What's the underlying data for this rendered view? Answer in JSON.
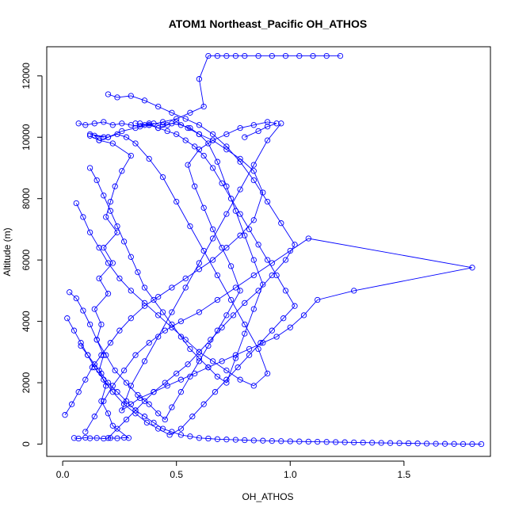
{
  "chart_data": {
    "type": "line",
    "title": "ATOM1 Northeast_Pacific OH_ATHOS",
    "xlabel": "OH_ATHOS",
    "ylabel": "Altitude (m)",
    "xlim": [
      -0.07,
      1.88
    ],
    "ylim": [
      -400,
      12950
    ],
    "xticks": [
      0.0,
      0.5,
      1.0,
      1.5
    ],
    "xtick_labels": [
      "0.0",
      "0.5",
      "1.0",
      "1.5"
    ],
    "yticks": [
      0,
      2000,
      4000,
      6000,
      8000,
      10000,
      12000
    ],
    "ytick_labels": [
      "0",
      "2000",
      "4000",
      "6000",
      "8000",
      "10000",
      "12000"
    ],
    "grid": false,
    "series_color": "#0000ff",
    "marker": "open-circle",
    "series": [
      {
        "x": [
          0.05,
          0.07,
          0.1,
          0.12,
          0.15,
          0.18,
          0.21,
          0.24,
          0.27,
          0.29,
          0.22,
          0.2,
          0.17,
          0.19,
          0.16,
          0.18,
          0.15,
          0.17,
          0.14,
          0.2,
          0.16,
          0.22,
          0.18,
          0.24,
          0.19,
          0.21,
          0.23,
          0.26,
          0.3,
          0.22,
          0.16,
          0.14,
          0.18,
          0.12,
          0.2,
          0.26,
          0.32,
          0.38,
          0.44,
          0.5,
          0.56,
          0.62,
          0.6,
          0.64,
          0.68,
          0.72,
          0.76,
          0.8,
          0.86,
          0.92,
          0.98,
          1.04,
          1.1,
          1.16,
          1.22
        ],
        "y": [
          200,
          180,
          210,
          190,
          200,
          180,
          200,
          190,
          210,
          200,
          600,
          1000,
          1400,
          1900,
          2400,
          2900,
          3400,
          3900,
          4400,
          4900,
          5400,
          5900,
          6400,
          6900,
          7400,
          7900,
          8400,
          8900,
          9400,
          9800,
          9900,
          10050,
          10000,
          10100,
          10000,
          10200,
          10300,
          10400,
          10500,
          10600,
          10800,
          11000,
          11900,
          12650,
          12650,
          12650,
          12650,
          12650,
          12650,
          12650,
          12650,
          12650,
          12650,
          12650,
          12650
        ]
      },
      {
        "x": [
          0.03,
          0.06,
          0.09,
          0.12,
          0.15,
          0.19,
          0.23,
          0.28,
          0.33,
          0.38,
          0.42,
          0.45,
          0.48,
          0.52,
          0.56,
          0.6,
          0.64,
          0.68,
          0.72,
          0.78,
          0.74,
          0.7,
          0.66,
          0.62,
          0.58,
          0.55,
          0.6,
          0.66,
          0.72,
          0.78,
          0.84,
          0.9,
          0.94,
          0.9,
          0.86,
          0.8
        ],
        "y": [
          4950,
          4750,
          4350,
          3900,
          3400,
          2900,
          2400,
          2000,
          1600,
          1300,
          1000,
          800,
          1200,
          1700,
          2200,
          2700,
          3200,
          3700,
          4200,
          5000,
          5800,
          6400,
          7000,
          7700,
          8400,
          9100,
          9600,
          9900,
          10100,
          10300,
          10400,
          10500,
          10450,
          10350,
          10200,
          10000
        ]
      },
      {
        "x": [
          0.01,
          0.04,
          0.07,
          0.1,
          0.13,
          0.17,
          0.21,
          0.25,
          0.3,
          0.36,
          0.42,
          0.48,
          0.54,
          0.6,
          0.66,
          0.72,
          0.78,
          0.84,
          0.88,
          0.84,
          0.78,
          0.72,
          0.66,
          0.6,
          0.55,
          0.5,
          0.46,
          0.42,
          0.38,
          0.34,
          0.3,
          0.26,
          0.22,
          0.18,
          0.14,
          0.1,
          0.07
        ],
        "y": [
          950,
          1300,
          1700,
          2100,
          2500,
          2900,
          3300,
          3700,
          4100,
          4500,
          4800,
          5100,
          5400,
          5700,
          6000,
          6400,
          6800,
          7300,
          8200,
          8900,
          9300,
          9600,
          9900,
          10100,
          10300,
          10500,
          10400,
          10300,
          10450,
          10350,
          10400,
          10450,
          10400,
          10500,
          10450,
          10400,
          10450
        ]
      },
      {
        "x": [
          0.2,
          0.24,
          0.28,
          0.32,
          0.36,
          0.4,
          0.45,
          0.5,
          0.55,
          0.6,
          0.65,
          0.7,
          0.75,
          0.8,
          0.86,
          0.92,
          0.98,
          1.02,
          0.96,
          0.9,
          0.84,
          0.78,
          0.72,
          0.66,
          0.6,
          0.54,
          0.48,
          0.42,
          0.36,
          0.3,
          0.24,
          0.2
        ],
        "y": [
          200,
          500,
          800,
          1100,
          1400,
          1700,
          2000,
          2300,
          2600,
          3000,
          3400,
          3800,
          4200,
          4600,
          5000,
          5500,
          6000,
          6500,
          7200,
          7900,
          8600,
          9200,
          9700,
          10100,
          10400,
          10600,
          10800,
          11000,
          11200,
          11350,
          11300,
          11400
        ]
      },
      {
        "x": [
          0.1,
          0.14,
          0.18,
          0.22,
          0.27,
          0.32,
          0.38,
          0.45,
          0.52,
          0.6,
          0.68,
          0.76,
          0.84,
          0.92,
          1.0,
          1.08,
          1.8,
          1.28,
          1.12,
          1.06,
          1.0,
          0.94,
          0.88,
          0.82,
          0.76,
          0.7,
          0.64,
          0.58,
          0.52,
          0.46,
          0.4,
          0.34,
          0.3,
          0.26,
          0.3,
          0.36,
          0.42,
          0.48,
          0.54,
          0.6,
          0.66,
          0.72,
          0.78,
          0.84,
          0.9,
          0.96
        ],
        "y": [
          400,
          900,
          1400,
          1900,
          2400,
          2900,
          3300,
          3700,
          4000,
          4300,
          4700,
          5100,
          5500,
          5900,
          6300,
          6700,
          5750,
          5000,
          4700,
          4200,
          3800,
          3500,
          3300,
          3100,
          2900,
          2700,
          2500,
          2300,
          2100,
          1900,
          1700,
          1500,
          1300,
          1100,
          1900,
          2700,
          3500,
          4300,
          5100,
          5900,
          6700,
          7500,
          8300,
          9100,
          9900,
          10450
        ]
      },
      {
        "x": [
          0.08,
          0.11,
          0.14,
          0.17,
          0.2,
          0.24,
          0.28,
          0.32,
          0.36,
          0.4,
          0.44,
          0.48,
          0.52,
          0.56,
          0.6,
          0.64,
          0.68,
          0.72,
          0.76,
          0.8,
          0.84,
          0.88,
          0.92,
          0.96,
          1.0,
          1.04,
          1.08,
          1.12,
          1.16,
          1.2,
          1.24,
          1.28,
          1.32,
          1.36,
          1.4,
          1.44,
          1.48,
          1.52,
          1.56,
          1.6,
          1.64,
          1.68,
          1.72,
          1.76,
          1.8,
          1.84
        ],
        "y": [
          3200,
          2900,
          2600,
          2300,
          2000,
          1700,
          1400,
          1100,
          900,
          700,
          500,
          400,
          300,
          250,
          200,
          180,
          160,
          150,
          140,
          130,
          120,
          110,
          100,
          95,
          90,
          85,
          80,
          75,
          70,
          65,
          60,
          55,
          50,
          45,
          40,
          35,
          30,
          25,
          20,
          15,
          10,
          8,
          6,
          4,
          2,
          0
        ]
      },
      {
        "x": [
          0.06,
          0.09,
          0.12,
          0.16,
          0.2,
          0.25,
          0.3,
          0.36,
          0.42,
          0.48,
          0.54,
          0.6,
          0.66,
          0.72,
          0.78,
          0.84,
          0.9,
          0.86,
          0.8,
          0.74,
          0.68,
          0.62,
          0.56,
          0.5,
          0.44,
          0.38,
          0.32,
          0.28,
          0.24,
          0.2,
          0.16,
          0.12
        ],
        "y": [
          7850,
          7400,
          6900,
          6400,
          5900,
          5400,
          5000,
          4600,
          4200,
          3800,
          3400,
          3000,
          2700,
          2400,
          2100,
          1900,
          2300,
          3100,
          3900,
          4700,
          5500,
          6300,
          7100,
          7900,
          8700,
          9300,
          9800,
          10000,
          10100,
          10000,
          9900,
          10050
        ]
      },
      {
        "x": [
          0.12,
          0.15,
          0.18,
          0.21,
          0.24,
          0.27,
          0.3,
          0.33,
          0.36,
          0.4,
          0.44,
          0.48,
          0.52,
          0.56,
          0.6,
          0.64,
          0.68,
          0.72,
          0.76,
          0.8,
          0.84,
          0.88,
          0.84,
          0.8,
          0.76,
          0.72,
          0.68,
          0.64,
          0.6,
          0.56,
          0.52,
          0.48,
          0.44,
          0.4,
          0.36,
          0.32
        ],
        "y": [
          9000,
          8600,
          8100,
          7600,
          7100,
          6600,
          6100,
          5600,
          5100,
          4700,
          4300,
          3900,
          3500,
          3100,
          2800,
          2500,
          2200,
          2000,
          2800,
          3600,
          4400,
          5200,
          6000,
          6800,
          7600,
          8400,
          9200,
          9800,
          10100,
          10300,
          10400,
          10450,
          10400,
          10450,
          10400,
          10450
        ]
      },
      {
        "x": [
          0.02,
          0.05,
          0.08,
          0.11,
          0.14,
          0.18,
          0.22,
          0.27,
          0.32,
          0.37,
          0.42,
          0.47,
          0.52,
          0.57,
          0.62,
          0.67,
          0.72,
          0.77,
          0.82,
          0.87,
          0.92,
          0.97,
          1.02,
          0.98,
          0.94,
          0.9,
          0.86,
          0.82,
          0.78,
          0.74,
          0.7,
          0.66,
          0.62,
          0.58,
          0.54,
          0.5,
          0.46,
          0.42,
          0.38,
          0.34
        ],
        "y": [
          4100,
          3700,
          3300,
          2900,
          2500,
          2100,
          1700,
          1300,
          1000,
          700,
          500,
          300,
          500,
          900,
          1300,
          1700,
          2100,
          2500,
          2900,
          3300,
          3700,
          4100,
          4500,
          5000,
          5500,
          6000,
          6500,
          7000,
          7500,
          8000,
          8500,
          9000,
          9400,
          9700,
          9900,
          10100,
          10200,
          10300,
          10400,
          10450
        ]
      }
    ]
  }
}
